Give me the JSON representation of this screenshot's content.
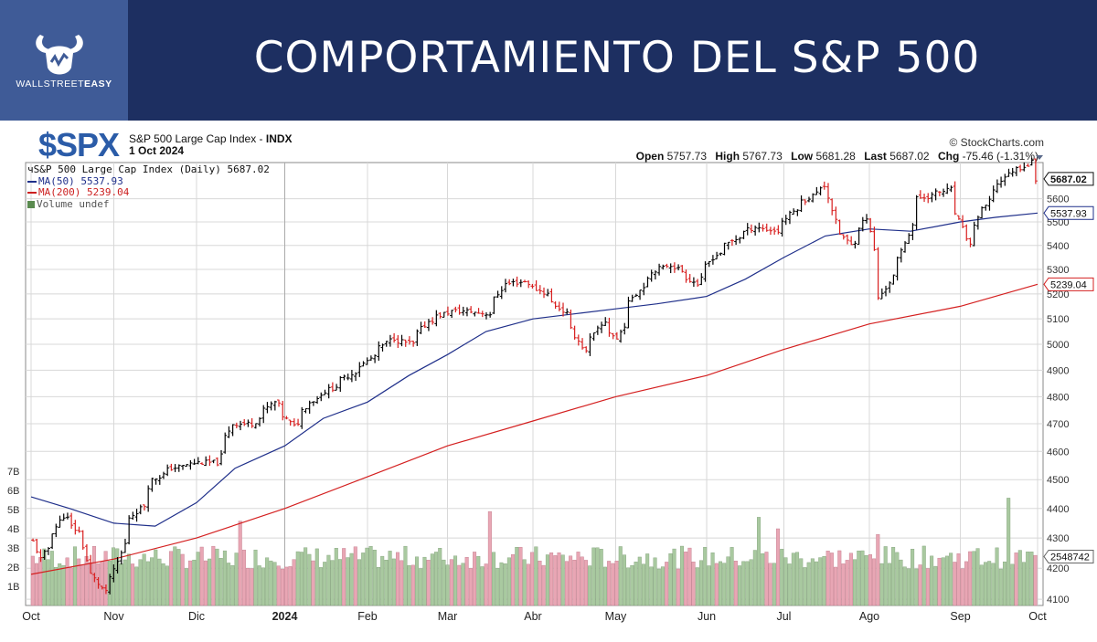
{
  "banner": {
    "title": "COMPORTAMIENTO DEL S&P 500",
    "logo_text_light": "WALLSTREET",
    "logo_text_bold": "EASY",
    "colors": {
      "background": "#1d2f61",
      "panel": "#3f5b97"
    }
  },
  "header": {
    "symbol": "$SPX",
    "name": "S&P 500 Large Cap Index",
    "exchange": "INDX",
    "date": "1 Oct 2024",
    "copyright": "© StockCharts.com",
    "quote": {
      "open_label": "Open",
      "open": "5757.73",
      "high_label": "High",
      "high": "5767.73",
      "low_label": "Low",
      "low": "5681.28",
      "last_label": "Last",
      "last": "5687.02",
      "chg_label": "Chg",
      "chg": "-75.46 (-1.31%)"
    }
  },
  "legend": {
    "main": "S&P 500 Large Cap Index (Daily) 5687.02",
    "ma50": "MA(50) 5537.93",
    "ma200": "MA(200) 5239.04",
    "volume": "Volume undef"
  },
  "chart_data": {
    "type": "ohlc",
    "price_scale": "log",
    "ylim": [
      4080,
      5760
    ],
    "y_ticks": [
      4100,
      4200,
      4300,
      4400,
      4500,
      4600,
      4700,
      4800,
      4900,
      5000,
      5100,
      5200,
      5300,
      5400,
      5500,
      5600
    ],
    "volume_ticks": [
      "1B",
      "2B",
      "3B",
      "4B",
      "5B",
      "6B",
      "7B"
    ],
    "volume_tick_values": [
      1,
      2,
      3,
      4,
      5,
      6,
      7
    ],
    "x_labels": [
      "Oct",
      "Nov",
      "Dic",
      "2024",
      "Feb",
      "Mar",
      "Abr",
      "May",
      "Jun",
      "Jul",
      "Ago",
      "Sep",
      "Oct"
    ],
    "x_label_dates": [
      "2023-10-02",
      "2023-11-01",
      "2023-12-01",
      "2024-01-02",
      "2024-02-01",
      "2024-03-01",
      "2024-04-01",
      "2024-05-01",
      "2024-06-03",
      "2024-07-01",
      "2024-08-01",
      "2024-09-03",
      "2024-10-01"
    ],
    "first_date": "2023-10-02",
    "last_date": "2024-10-01",
    "price_path": [
      [
        "2023-10-02",
        4288
      ],
      [
        "2023-10-04",
        4230
      ],
      [
        "2023-10-12",
        4375
      ],
      [
        "2023-10-18",
        4320
      ],
      [
        "2023-10-20",
        4225
      ],
      [
        "2023-10-27",
        4120
      ],
      [
        "2023-10-31",
        4190
      ],
      [
        "2023-11-06",
        4370
      ],
      [
        "2023-11-10",
        4410
      ],
      [
        "2023-11-14",
        4500
      ],
      [
        "2023-11-21",
        4540
      ],
      [
        "2023-11-30",
        4560
      ],
      [
        "2023-12-07",
        4560
      ],
      [
        "2023-12-13",
        4700
      ],
      [
        "2023-12-20",
        4700
      ],
      [
        "2023-12-28",
        4780
      ],
      [
        "2024-01-04",
        4690
      ],
      [
        "2024-01-10",
        4780
      ],
      [
        "2024-01-19",
        4840
      ],
      [
        "2024-01-30",
        4925
      ],
      [
        "2024-02-09",
        5025
      ],
      [
        "2024-02-16",
        5000
      ],
      [
        "2024-02-22",
        5090
      ],
      [
        "2024-03-01",
        5130
      ],
      [
        "2024-03-08",
        5130
      ],
      [
        "2024-03-15",
        5120
      ],
      [
        "2024-03-21",
        5240
      ],
      [
        "2024-03-28",
        5250
      ],
      [
        "2024-04-05",
        5200
      ],
      [
        "2024-04-12",
        5120
      ],
      [
        "2024-04-19",
        4970
      ],
      [
        "2024-04-26",
        5090
      ],
      [
        "2024-05-01",
        5020
      ],
      [
        "2024-05-07",
        5190
      ],
      [
        "2024-05-15",
        5300
      ],
      [
        "2024-05-21",
        5320
      ],
      [
        "2024-05-30",
        5240
      ],
      [
        "2024-06-05",
        5350
      ],
      [
        "2024-06-12",
        5420
      ],
      [
        "2024-06-20",
        5480
      ],
      [
        "2024-06-28",
        5460
      ],
      [
        "2024-07-05",
        5560
      ],
      [
        "2024-07-16",
        5660
      ],
      [
        "2024-07-19",
        5500
      ],
      [
        "2024-07-25",
        5400
      ],
      [
        "2024-07-31",
        5520
      ],
      [
        "2024-08-05",
        5180
      ],
      [
        "2024-08-12",
        5340
      ],
      [
        "2024-08-19",
        5600
      ],
      [
        "2024-08-30",
        5640
      ],
      [
        "2024-09-06",
        5400
      ],
      [
        "2024-09-11",
        5550
      ],
      [
        "2024-09-19",
        5700
      ],
      [
        "2024-09-26",
        5745
      ],
      [
        "2024-09-30",
        5762
      ],
      [
        "2024-10-01",
        5687
      ]
    ],
    "ma50_path": [
      [
        "2023-10-02",
        4440
      ],
      [
        "2023-10-16",
        4400
      ],
      [
        "2023-11-01",
        4350
      ],
      [
        "2023-11-16",
        4340
      ],
      [
        "2023-12-01",
        4420
      ],
      [
        "2023-12-15",
        4540
      ],
      [
        "2024-01-02",
        4620
      ],
      [
        "2024-01-16",
        4720
      ],
      [
        "2024-02-01",
        4780
      ],
      [
        "2024-02-16",
        4880
      ],
      [
        "2024-03-01",
        4960
      ],
      [
        "2024-03-15",
        5050
      ],
      [
        "2024-04-01",
        5100
      ],
      [
        "2024-04-16",
        5120
      ],
      [
        "2024-05-01",
        5140
      ],
      [
        "2024-05-16",
        5160
      ],
      [
        "2024-06-03",
        5190
      ],
      [
        "2024-06-17",
        5260
      ],
      [
        "2024-07-01",
        5350
      ],
      [
        "2024-07-16",
        5440
      ],
      [
        "2024-08-01",
        5470
      ],
      [
        "2024-08-16",
        5460
      ],
      [
        "2024-09-03",
        5500
      ],
      [
        "2024-09-16",
        5520
      ],
      [
        "2024-10-01",
        5537.93
      ]
    ],
    "ma200_path": [
      [
        "2023-10-02",
        4180
      ],
      [
        "2023-11-01",
        4230
      ],
      [
        "2023-12-01",
        4300
      ],
      [
        "2024-01-02",
        4400
      ],
      [
        "2024-02-01",
        4510
      ],
      [
        "2024-03-01",
        4620
      ],
      [
        "2024-04-01",
        4710
      ],
      [
        "2024-05-01",
        4800
      ],
      [
        "2024-06-03",
        4880
      ],
      [
        "2024-07-01",
        4980
      ],
      [
        "2024-08-01",
        5080
      ],
      [
        "2024-09-03",
        5150
      ],
      [
        "2024-10-01",
        5239.04
      ]
    ],
    "volume_spikes": [
      [
        "2023-12-15",
        4.4
      ],
      [
        "2024-03-15",
        4.9
      ],
      [
        "2024-06-21",
        4.6
      ],
      [
        "2024-06-28",
        4.0
      ],
      [
        "2024-08-05",
        3.7
      ],
      [
        "2024-09-20",
        5.6
      ]
    ],
    "volume_base": 2.5,
    "price_callouts": [
      {
        "label": "5687.02",
        "value": 5687.02,
        "style": "last"
      },
      {
        "label": "5537.93",
        "value": 5537.93,
        "style": "ma50"
      },
      {
        "label": "5239.04",
        "value": 5239.04,
        "style": "ma200"
      },
      {
        "label": "2548742",
        "value": 2.55,
        "style": "volume"
      }
    ],
    "colors": {
      "up": "#000000",
      "down": "#d81e1e",
      "ma50": "#1f2f8a",
      "ma200": "#d42020",
      "volume_up": "#a9c9a0",
      "volume_down": "#e8a6b4",
      "grid": "#d8d8d8"
    }
  }
}
